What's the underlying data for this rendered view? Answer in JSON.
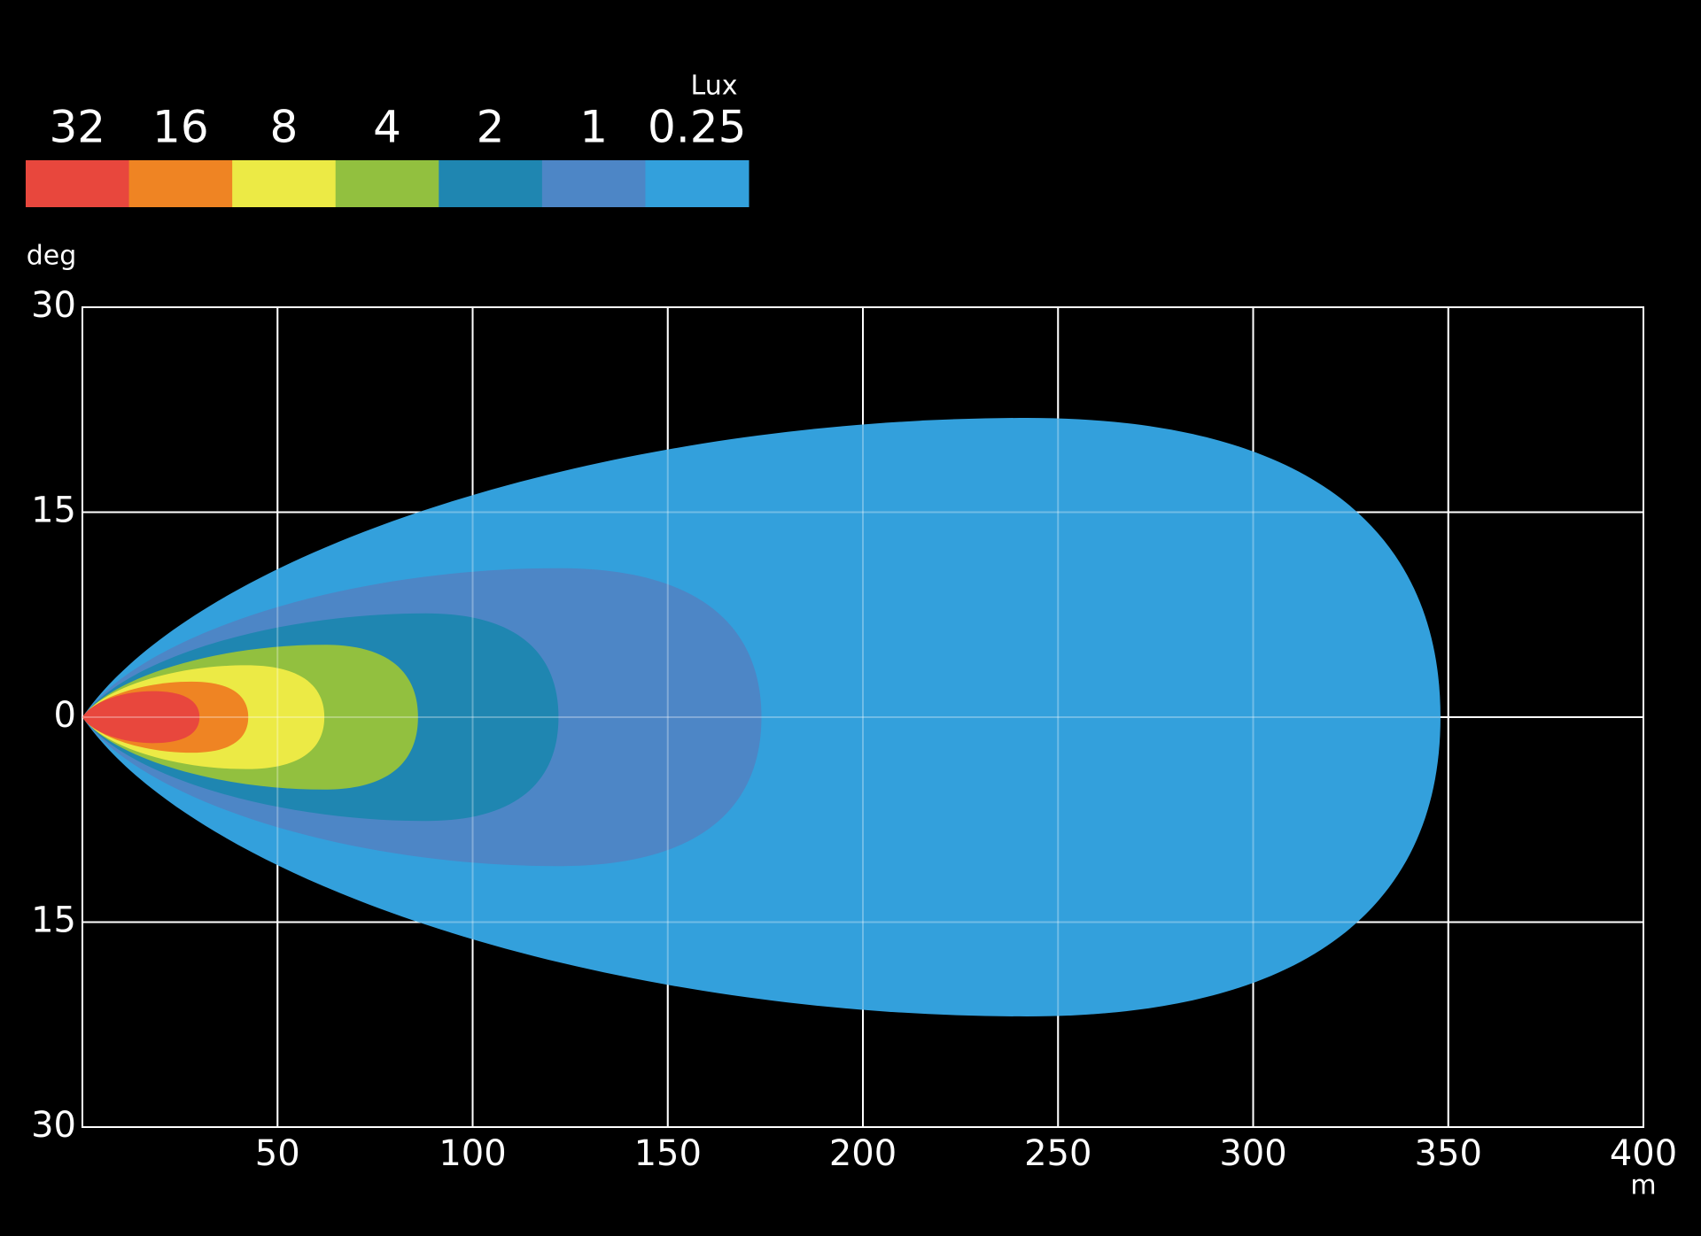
{
  "chart_data": {
    "type": "isolux",
    "legend_title": "Lux",
    "x_label": "m",
    "y_label": "deg",
    "xlim": [
      0,
      400
    ],
    "ylim": [
      -30,
      30
    ],
    "xticks": [
      50,
      100,
      150,
      200,
      250,
      300,
      350,
      400
    ],
    "yticks": [
      {
        "value": -30,
        "label": "30"
      },
      {
        "value": -15,
        "label": "15"
      },
      0,
      15,
      30
    ],
    "grid": true,
    "series": [
      {
        "name": "32",
        "color": "#e8473d",
        "reach": 30,
        "half_width": 1.9,
        "widest_at": 18
      },
      {
        "name": "16",
        "color": "#ef8423",
        "reach": 42.5,
        "half_width": 2.6,
        "widest_at": 28
      },
      {
        "name": "8",
        "color": "#ecea45",
        "reach": 62,
        "half_width": 3.8,
        "widest_at": 42
      },
      {
        "name": "4",
        "color": "#92c03f",
        "reach": 86,
        "half_width": 5.3,
        "widest_at": 62
      },
      {
        "name": "2",
        "color": "#1f86b1",
        "reach": 122,
        "half_width": 7.6,
        "widest_at": 88
      },
      {
        "name": "1",
        "color": "#4d86c6",
        "reach": 174,
        "half_width": 10.9,
        "widest_at": 122
      },
      {
        "name": "0.25",
        "color": "#33a0dc",
        "reach": 348,
        "half_width": 21.9,
        "widest_at": 242
      }
    ]
  }
}
